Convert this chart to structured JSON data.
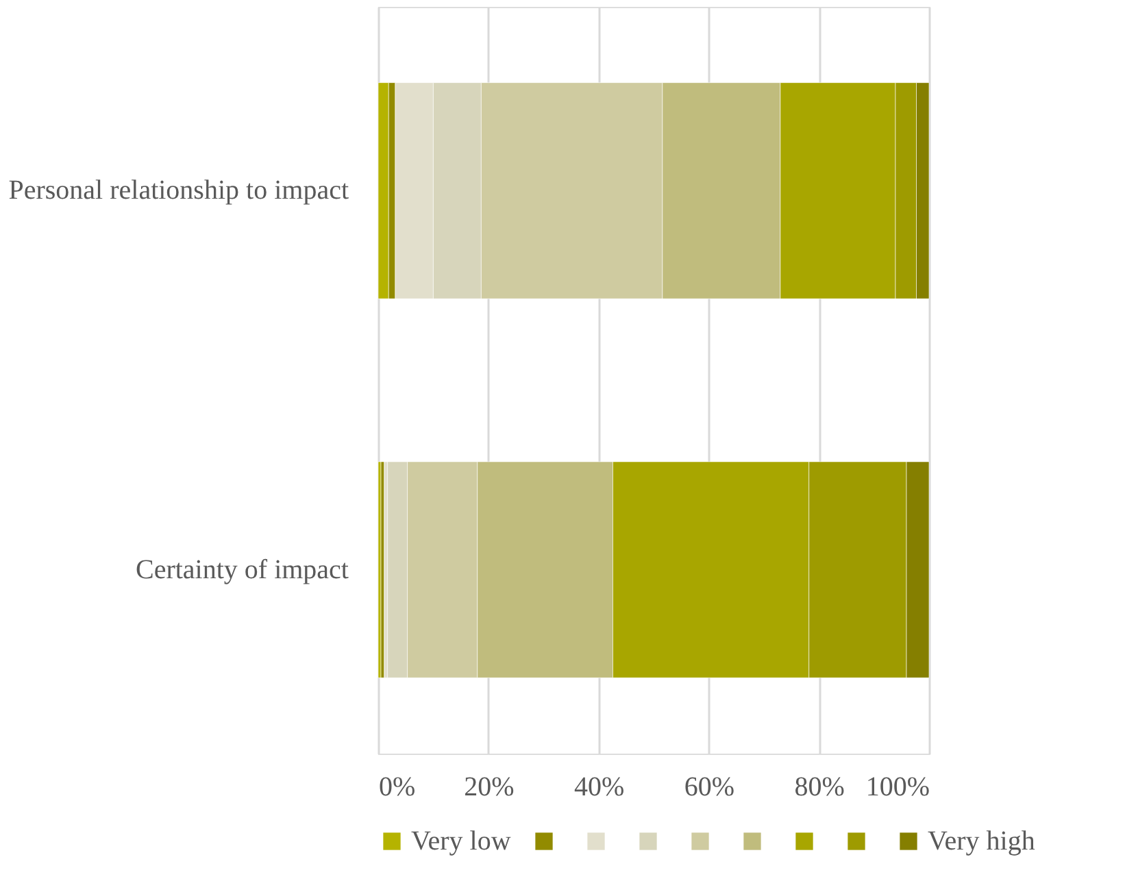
{
  "chart_data": {
    "type": "bar",
    "orientation": "horizontal",
    "stacked": true,
    "categories": [
      "Personal relationship to impact",
      "Certainty of impact"
    ],
    "series": [
      {
        "name": "Very low",
        "color": "#b5b300",
        "values": [
          1.9,
          0.5
        ]
      },
      {
        "color": "#928b00",
        "values": [
          1.2,
          0.6
        ]
      },
      {
        "color": "#e2dfcc",
        "values": [
          6.9,
          0.6
        ]
      },
      {
        "color": "#d7d5bb",
        "values": [
          8.7,
          3.6
        ]
      },
      {
        "color": "#cfcba0",
        "values": [
          32.9,
          12.7
        ]
      },
      {
        "color": "#c0bc7d",
        "values": [
          21.4,
          24.6
        ]
      },
      {
        "color": "#a8a600",
        "values": [
          20.9,
          35.6
        ]
      },
      {
        "color": "#9e9b00",
        "values": [
          3.8,
          17.7
        ]
      },
      {
        "name": "Very high",
        "color": "#857f00",
        "values": [
          2.3,
          4.1
        ]
      }
    ],
    "xlim": [
      0,
      100
    ],
    "xticks": [
      {
        "value": 0,
        "label": "0%"
      },
      {
        "value": 20,
        "label": "20%"
      },
      {
        "value": 40,
        "label": "40%"
      },
      {
        "value": 60,
        "label": "60%"
      },
      {
        "value": 80,
        "label": "80%"
      },
      {
        "value": 100,
        "label": "100%"
      }
    ],
    "grid": "x",
    "legend": "bottom"
  }
}
